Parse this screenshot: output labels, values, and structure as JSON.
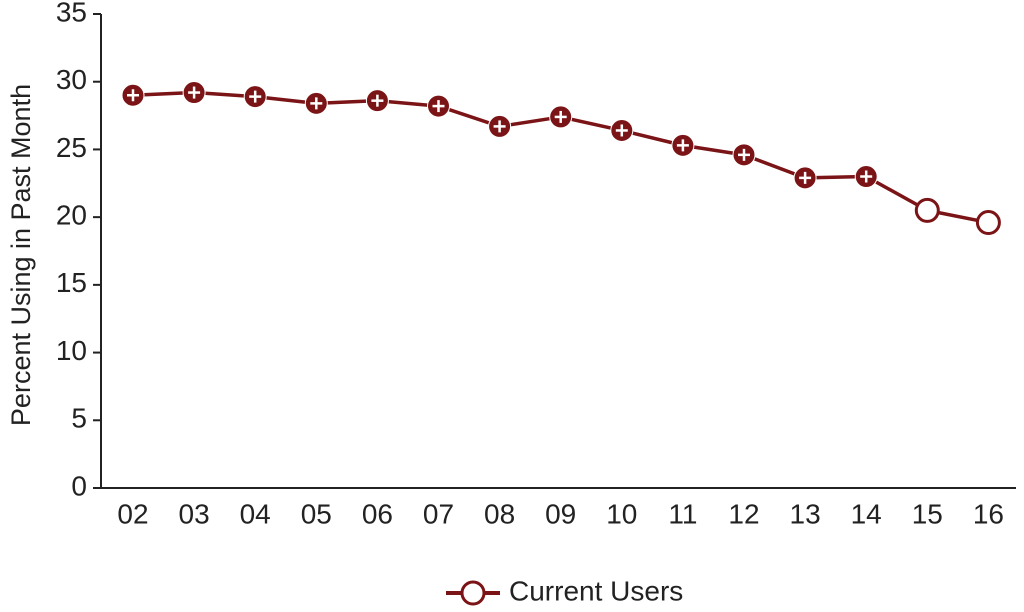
{
  "chart_data": {
    "type": "line",
    "title": "",
    "xlabel": "",
    "ylabel": "Percent Using in Past Month",
    "categories": [
      "02",
      "03",
      "04",
      "05",
      "06",
      "07",
      "08",
      "09",
      "10",
      "11",
      "12",
      "13",
      "14",
      "15",
      "16"
    ],
    "ylim": [
      0,
      35
    ],
    "yticks": [
      "0",
      "5",
      "10",
      "15",
      "20",
      "25",
      "30",
      "35"
    ],
    "grid": false,
    "legend_position": "bottom-center",
    "series": [
      {
        "name": "Current Users",
        "color": "#7b1416",
        "values": [
          29.0,
          29.2,
          28.9,
          28.4,
          28.6,
          28.2,
          26.7,
          27.4,
          26.4,
          25.3,
          24.6,
          22.9,
          23.0,
          20.5,
          19.6
        ],
        "marker_style": [
          "filled-plus",
          "filled-plus",
          "filled-plus",
          "filled-plus",
          "filled-plus",
          "filled-plus",
          "filled-plus",
          "filled-plus",
          "filled-plus",
          "filled-plus",
          "filled-plus",
          "filled-plus",
          "filled-plus",
          "open-circle",
          "open-circle"
        ]
      }
    ],
    "legend": {
      "label": "Current Users",
      "marker": "open-circle"
    }
  }
}
